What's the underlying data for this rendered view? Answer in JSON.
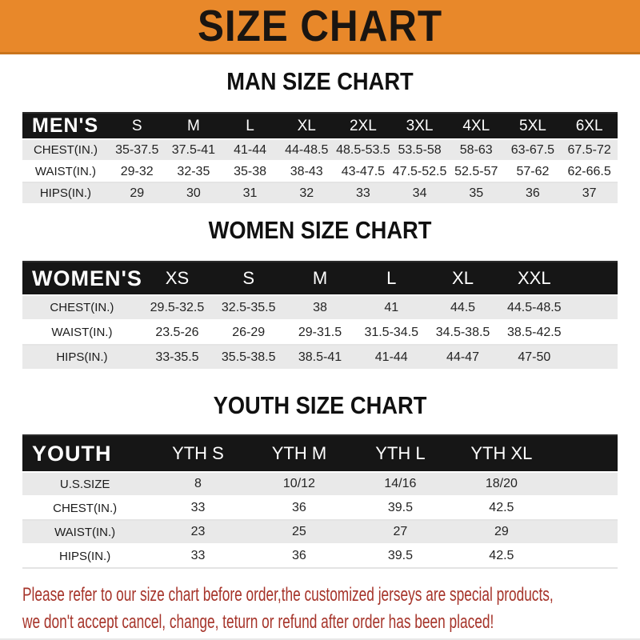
{
  "banner": {
    "title": "SIZE CHART",
    "bg_color": "#E8882A",
    "text_color": "#1A1511"
  },
  "colors": {
    "header_bar": "#161616",
    "stripe_row": "#E9E9E9",
    "notice_red": "#A6342A"
  },
  "sections": [
    {
      "key": "men",
      "heading": "MAN SIZE CHART",
      "group_label": "MEN'S",
      "sizes": [
        "S",
        "M",
        "L",
        "XL",
        "2XL",
        "3XL",
        "4XL",
        "5XL",
        "6XL"
      ],
      "rows": [
        {
          "label": "CHEST(IN.)",
          "values": [
            "35-37.5",
            "37.5-41",
            "41-44",
            "44-48.5",
            "48.5-53.5",
            "53.5-58",
            "58-63",
            "63-67.5",
            "67.5-72"
          ]
        },
        {
          "label": "WAIST(IN.)",
          "values": [
            "29-32",
            "32-35",
            "35-38",
            "38-43",
            "43-47.5",
            "47.5-52.5",
            "52.5-57",
            "57-62",
            "62-66.5"
          ]
        },
        {
          "label": "HIPS(IN.)",
          "values": [
            "29",
            "30",
            "31",
            "32",
            "33",
            "34",
            "35",
            "36",
            "37"
          ]
        }
      ]
    },
    {
      "key": "women",
      "heading": "WOMEN SIZE CHART",
      "group_label": "WOMEN'S",
      "sizes": [
        "XS",
        "S",
        "M",
        "L",
        "XL",
        "XXL"
      ],
      "rows": [
        {
          "label": "CHEST(IN.)",
          "values": [
            "29.5-32.5",
            "32.5-35.5",
            "38",
            "41",
            "44.5",
            "44.5-48.5"
          ]
        },
        {
          "label": "WAIST(IN.)",
          "values": [
            "23.5-26",
            "26-29",
            "29-31.5",
            "31.5-34.5",
            "34.5-38.5",
            "38.5-42.5"
          ]
        },
        {
          "label": "HIPS(IN.)",
          "values": [
            "33-35.5",
            "35.5-38.5",
            "38.5-41",
            "41-44",
            "44-47",
            "47-50"
          ]
        }
      ]
    },
    {
      "key": "youth",
      "heading": "YOUTH SIZE CHART",
      "group_label": "YOUTH",
      "sizes": [
        "YTH S",
        "YTH M",
        "YTH L",
        "YTH XL"
      ],
      "rows": [
        {
          "label": "U.S.SIZE",
          "values": [
            "8",
            "10/12",
            "14/16",
            "18/20"
          ]
        },
        {
          "label": "CHEST(IN.)",
          "values": [
            "33",
            "36",
            "39.5",
            "42.5"
          ]
        },
        {
          "label": "WAIST(IN.)",
          "values": [
            "23",
            "25",
            "27",
            "29"
          ]
        },
        {
          "label": "HIPS(IN.)",
          "values": [
            "33",
            "36",
            "39.5",
            "42.5"
          ]
        }
      ]
    }
  ],
  "footer": {
    "lines": [
      "Please refer to our size chart before order,the customized jerseys are special products,",
      "we don't accept cancel, change, teturn or refund after order has been placed!"
    ]
  }
}
